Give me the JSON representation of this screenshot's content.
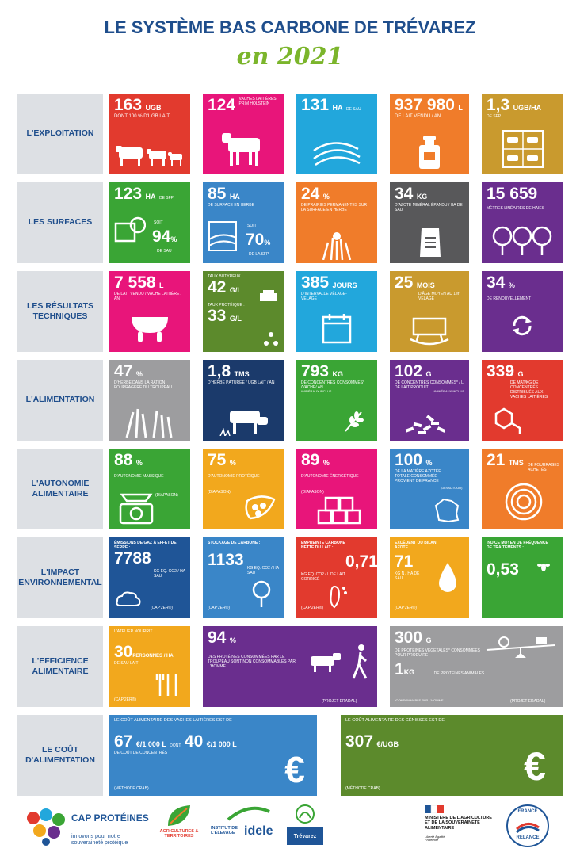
{
  "header": {
    "title": "LE SYSTÈME BAS CARBONE DE TRÉVAREZ",
    "subtitle": "en 2021"
  },
  "rows": {
    "r1": "L'EXPLOITATION",
    "r2": "LES SURFACES",
    "r3": "LES RÉSULTATS TECHNIQUES",
    "r4": "L'ALIMENTATION",
    "r5": "L'AUTONOMIE ALIMENTAIRE",
    "r6": "L'IMPACT ENVIRONNEMENTAL",
    "r7": "L'EFFICIENCE ALIMENTAIRE",
    "r8": "LE COÛT D'ALIMENTATION"
  },
  "colors": {
    "red": "#e23a2e",
    "pink": "#e8157a",
    "cyan": "#22a7dc",
    "orange": "#f07c2a",
    "gold": "#c99a2e",
    "blue": "#3a86c8",
    "darkgray": "#58585a",
    "purple": "#6a2e8e",
    "green": "#3aa535",
    "lightgray": "#9d9d9f",
    "darknavy": "#1b3a6b",
    "yellow": "#f2a81d",
    "navy": "#1f5597",
    "olive": "#5c8a2c"
  },
  "t": {
    "a1": {
      "num": "163",
      "unit": "UGB",
      "sub": "DONT 100 % D'UGB LAIT"
    },
    "a2": {
      "num": "124",
      "unit": "VACHES LAITIÈRES PRIM HOLSTEIN"
    },
    "a3": {
      "num": "131",
      "unit": "HA",
      "sub": "DE SAU"
    },
    "a4": {
      "num": "937 980",
      "unit": "L",
      "sub": "DE LAIT VENDU / AN"
    },
    "a5": {
      "num": "1,3",
      "unit": "UGB/HA",
      "sub": "DE SFP"
    },
    "b1": {
      "num": "123",
      "unit": "HA",
      "sub": "DE SFP",
      "num2": "94",
      "unit2": "%",
      "pre2": "SOIT",
      "sub2": "DE SAU"
    },
    "b2": {
      "num": "85",
      "unit": "HA",
      "sub": "DE SURFACE EN HERBE",
      "num2": "70",
      "unit2": "%",
      "pre2": "SOIT",
      "sub2": "DE LA SFP"
    },
    "b3": {
      "num": "24",
      "unit": "%",
      "sub": "DE PRAIRIES PERMANENTES SUR LA SURFACE EN HERBE"
    },
    "b4": {
      "num": "34",
      "unit": "KG",
      "sub": "D'AZOTE MINÉRAL ÉPANDU / HA DE SAU"
    },
    "b5": {
      "num": "15 659",
      "sub": "MÈTRES LINÉAIRES DE HAIES"
    },
    "c1": {
      "num": "7 558",
      "unit": "L",
      "sub": "DE LAIT VENDU / VACHE LAITIÈRE / AN"
    },
    "c2": {
      "pre": "TAUX BUTYREUX :",
      "num": "42",
      "unit": "G/L",
      "pre2": "TAUX PROTÉIQUE :",
      "num2": "33",
      "unit2": "G/L"
    },
    "c3": {
      "num": "385",
      "unit": "JOURS",
      "sub": "D'INTERVALLE VÊLAGE-VÊLAGE"
    },
    "c4": {
      "num": "25",
      "unit": "MOIS",
      "sub": "D'ÂGE MOYEN AU 1er VÊLAGE"
    },
    "c5": {
      "num": "34",
      "unit": "%",
      "sub": "DE RENOUVELLEMENT"
    },
    "d1": {
      "num": "47",
      "unit": "%",
      "sub": "D'HERBE DANS LA RATION FOURRAGÈRE DU TROUPEAU"
    },
    "d2": {
      "num": "1,8",
      "unit": "TMS",
      "sub": "D'HERBE PÂTURÉE / UGB LAIT / AN"
    },
    "d3": {
      "num": "793",
      "unit": "KG",
      "sub": "DE CONCENTRÉS CONSOMMÉS* /VACHE/ AN",
      "note": "*MINÉRAUX INCLUS"
    },
    "d4": {
      "num": "102",
      "unit": "G",
      "sub": "DE CONCENTRÉS CONSOMMÉS* / L DE LAIT PRODUIT",
      "note": "*MINÉRAUX INCLUS"
    },
    "d5": {
      "num": "339",
      "unit": "G",
      "sub": "DE MAT/KG DE CONCENTRÉS DISTRIBUÉS AUX VACHES LAITIÈRES"
    },
    "e1": {
      "num": "88",
      "unit": "%",
      "sub": "D'AUTONOMIE MASSIQUE",
      "note": "(DIAPASON)"
    },
    "e2": {
      "num": "75",
      "unit": "%",
      "sub": "D'AUTONOMIE PROTÉIQUE",
      "note": "(DIAPASON)"
    },
    "e3": {
      "num": "89",
      "unit": "%",
      "sub": "D'AUTONOMIE ÉNERGÉTIQUE",
      "note": "(DIAPASON)"
    },
    "e4": {
      "num": "100",
      "unit": "%",
      "sub": "DE LA MATIÈRE AZOTÉE TOTALE CONSOMMÉE PROVIENT DE FRANCE",
      "note": "(DEVAUTOUR)"
    },
    "e5": {
      "num": "21",
      "unit": "TMS",
      "sub": "DE FOURRAGES ACHETÉS"
    },
    "f1": {
      "pre": "ÉMISSIONS DE GAZ À EFFET DE SERRE :",
      "num": "7788",
      "unit": "KG EQ. CO2 / HA SAU",
      "note": "(CAP'2ER®)"
    },
    "f2": {
      "pre": "STOCKAGE DE CARBONE :",
      "num": "1133",
      "unit": "KG EQ. CO2 / HA SAU",
      "note": "(CAP'2ER®)"
    },
    "f3": {
      "pre": "EMPREINTE CARBONE NETTE DU LAIT :",
      "num": "0,71",
      "unit": "KG EQ. CO2 / L DE LAIT CORRIGÉ",
      "note": "(CAP'2ER®)"
    },
    "f4": {
      "pre": "EXCÉDENT DU BILAN AZOTE",
      "num": "71",
      "unit": "KG N / HA DE SAU",
      "note": "(CAP'2ER®)"
    },
    "f5": {
      "pre": "INDICE MOYEN DE FRÉQUENCE DE TRAITEMENTS :",
      "num": "0,53"
    },
    "g1": {
      "pre": "L'ATELIER NOURRIT",
      "num": "30",
      "unit": "PERSONNES / HA",
      "sub": "DE SAU LAIT",
      "note": "(CAP'2ER®)"
    },
    "g2": {
      "num": "94",
      "unit": "%",
      "sub": "DES PROTÉINES CONSOMMÉES PAR LE TROUPEAU SONT NON CONSOMMABLES PAR L'HOMME",
      "note": "(PROJET ERADAL)"
    },
    "g3": {
      "num": "300",
      "unit": "G",
      "sub": "DE PROTÉINES VÉGÉTALES* CONSOMMÉES POUR PRODUIRE",
      "num2": "1",
      "unit2": "KG",
      "sub2": "DE PROTÉINES ANIMALES",
      "note": "*CONSOMMABLE PAR L'HOMME",
      "note2": "(PROJET ERADAL)"
    },
    "h1": {
      "pre": "LE COÛT ALIMENTAIRE DES VACHES LAITIÈRES EST DE",
      "num": "67",
      "unit": "€/1 000 L",
      "mid": "DONT",
      "num2": "40",
      "unit2": "€/1 000 L",
      "sub": "DE COÛT DE CONCENTRÉS",
      "note": "(MÉTHODE CRAB)",
      "sym": "€"
    },
    "h2": {
      "pre": "LE COÛT ALIMENTAIRE DES GÉNISSES EST DE",
      "num": "307",
      "unit": "€/UGB",
      "note": "(MÉTHODE CRAB)",
      "sym": "€"
    }
  },
  "footer": {
    "cap_title": "CAP PROTÉINES",
    "cap_tagline": "innovons pour notre souveraineté protéique",
    "agri_label": "AGRICULTURES & TERRITOIRES",
    "idele_top": "INSTITUT DE L'ÉLEVAGE",
    "idele_brand": "idele",
    "trevarez": "Trévarez",
    "ministere": "MINISTÈRE DE L'AGRICULTURE ET DE LA SOUVERAINETÉ ALIMENTAIRE",
    "ministere_motto": "Liberté Égalité Fraternité",
    "relance_top": "FRANCE",
    "relance_bottom": "RELANCE"
  }
}
